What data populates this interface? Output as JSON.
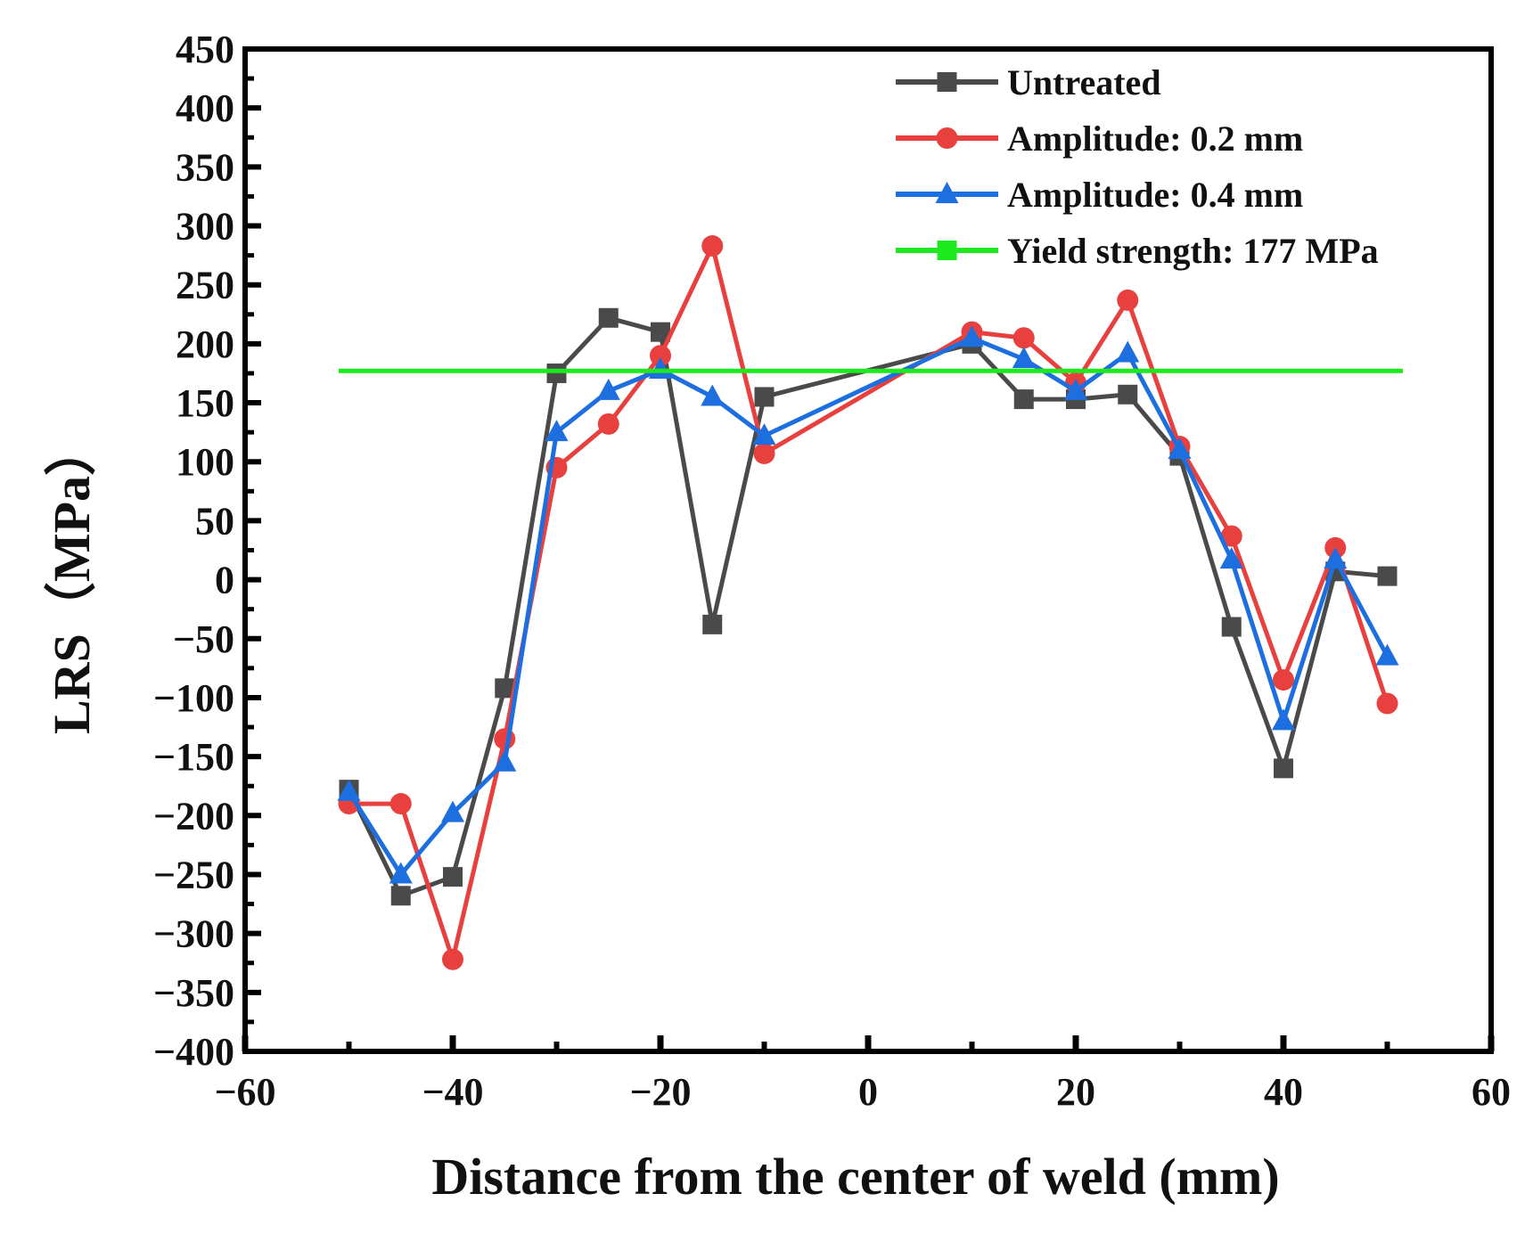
{
  "chart_data": {
    "type": "line",
    "title": "",
    "xlabel": "Distance from the center of weld (mm)",
    "ylabel": "LRS（MPa）",
    "xlim": [
      -60,
      60
    ],
    "ylim": [
      -400,
      450
    ],
    "xticks": [
      -60,
      -40,
      -20,
      0,
      20,
      40,
      60
    ],
    "xtick_labels": [
      "−60",
      "−40",
      "−20",
      "0",
      "20",
      "40",
      "60"
    ],
    "yticks": [
      -400,
      -350,
      -300,
      -250,
      -200,
      -150,
      -100,
      -50,
      0,
      50,
      100,
      150,
      200,
      250,
      300,
      350,
      400,
      450
    ],
    "ytick_labels": [
      "−400",
      "−350",
      "−300",
      "−250",
      "−200",
      "−150",
      "−100",
      "−50",
      "0",
      "50",
      "100",
      "150",
      "200",
      "250",
      "300",
      "350",
      "400",
      "450"
    ],
    "grid": false,
    "legend_position": "top-right",
    "series": [
      {
        "name": "Untreated",
        "color": "#4a4a4a",
        "marker": "square",
        "x": [
          -50,
          -45,
          -40,
          -35,
          -30,
          -25,
          -20,
          -15,
          -10,
          10,
          15,
          20,
          25,
          30,
          35,
          40,
          45,
          50
        ],
        "y": [
          -178,
          -268,
          -252,
          -92,
          175,
          222,
          210,
          -38,
          155,
          200,
          153,
          153,
          157,
          105,
          -40,
          -160,
          7,
          3
        ]
      },
      {
        "name": "Amplitude: 0.2 mm",
        "color": "#e8403f",
        "marker": "circle",
        "x": [
          -50,
          -45,
          -40,
          -35,
          -30,
          -25,
          -20,
          -15,
          -10,
          10,
          15,
          20,
          25,
          30,
          35,
          40,
          45,
          50
        ],
        "y": [
          -190,
          -190,
          -322,
          -135,
          95,
          132,
          190,
          283,
          107,
          210,
          205,
          167,
          237,
          113,
          37,
          -85,
          27,
          -105
        ]
      },
      {
        "name": "Amplitude: 0.4 mm",
        "color": "#1d6fe0",
        "marker": "triangle",
        "x": [
          -50,
          -45,
          -40,
          -35,
          -30,
          -25,
          -20,
          -15,
          -10,
          10,
          15,
          20,
          25,
          30,
          35,
          40,
          45,
          50
        ],
        "y": [
          -180,
          -250,
          -198,
          -155,
          125,
          160,
          178,
          155,
          122,
          205,
          187,
          160,
          192,
          110,
          17,
          -120,
          17,
          -65
        ]
      },
      {
        "name": "Yield strength: 177 MPa",
        "color": "#1ee81e",
        "marker": "square",
        "type": "hline",
        "x": [
          -51,
          51.5
        ],
        "y": [
          177,
          177
        ]
      }
    ]
  }
}
